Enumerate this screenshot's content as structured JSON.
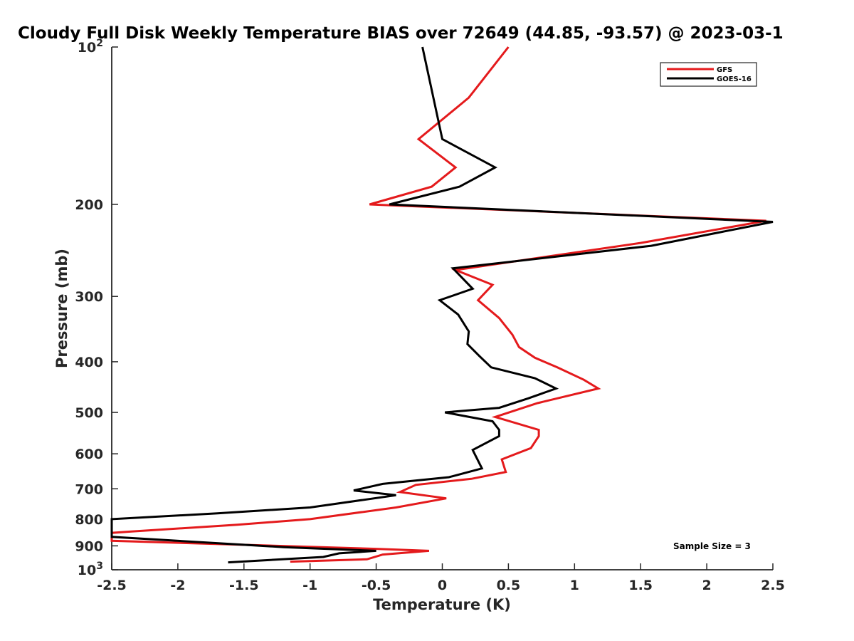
{
  "chart_data": {
    "type": "line",
    "title": "Cloudy Full Disk Weekly Temperature BIAS over 72649 (44.85, -93.57) @ 2023-03-1",
    "xlabel": "Temperature (K)",
    "ylabel": "Pressure (mb)",
    "xlim": [
      -2.5,
      2.5
    ],
    "ylim": [
      100,
      1000
    ],
    "y_scale": "log",
    "y_reversed": true,
    "x_ticks": [
      "-2.5",
      "-2",
      "-1.5",
      "-1",
      "-0.5",
      "0",
      "0.5",
      "1",
      "1.5",
      "2",
      "2.5"
    ],
    "x_tick_values": [
      -2.5,
      -2,
      -1.5,
      -1,
      -0.5,
      0,
      0.5,
      1,
      1.5,
      2,
      2.5
    ],
    "y_ticks": [
      {
        "value": 100,
        "label": "10",
        "sup": "2"
      },
      {
        "value": 200,
        "label": "200",
        "sup": ""
      },
      {
        "value": 300,
        "label": "300",
        "sup": ""
      },
      {
        "value": 400,
        "label": "400",
        "sup": ""
      },
      {
        "value": 500,
        "label": "500",
        "sup": ""
      },
      {
        "value": 600,
        "label": "600",
        "sup": ""
      },
      {
        "value": 700,
        "label": "700",
        "sup": ""
      },
      {
        "value": 800,
        "label": "800",
        "sup": ""
      },
      {
        "value": 900,
        "label": "900",
        "sup": ""
      },
      {
        "value": 1000,
        "label": "10",
        "sup": "3"
      }
    ],
    "grid": false,
    "legend_position": "top-right",
    "series": [
      {
        "name": "GFS",
        "color": "#e41a1c",
        "points": [
          [
            0.5,
            100
          ],
          [
            0.2,
            125
          ],
          [
            -0.18,
            150
          ],
          [
            0.1,
            170
          ],
          [
            -0.08,
            185
          ],
          [
            -0.55,
            200
          ],
          [
            2.45,
            215
          ],
          [
            1.5,
            237
          ],
          [
            0.1,
            267
          ],
          [
            0.38,
            285
          ],
          [
            0.27,
            305
          ],
          [
            0.43,
            330
          ],
          [
            0.53,
            355
          ],
          [
            0.58,
            375
          ],
          [
            0.7,
            393
          ],
          [
            0.87,
            410
          ],
          [
            1.07,
            433
          ],
          [
            1.18,
            450
          ],
          [
            0.72,
            480
          ],
          [
            0.4,
            510
          ],
          [
            0.73,
            540
          ],
          [
            0.73,
            555
          ],
          [
            0.67,
            585
          ],
          [
            0.45,
            615
          ],
          [
            0.48,
            650
          ],
          [
            0.22,
            670
          ],
          [
            -0.2,
            688
          ],
          [
            -0.32,
            710
          ],
          [
            0.03,
            730
          ],
          [
            -0.35,
            760
          ],
          [
            -1.0,
            800
          ],
          [
            -1.55,
            820
          ],
          [
            -2.35,
            845
          ],
          [
            -2.5,
            850
          ],
          [
            -2.5,
            880
          ],
          [
            -0.5,
            912
          ],
          [
            -0.1,
            920
          ],
          [
            -0.45,
            935
          ],
          [
            -0.57,
            955
          ],
          [
            -1.15,
            965
          ]
        ]
      },
      {
        "name": "GOES-16",
        "color": "#000000",
        "points": [
          [
            -0.15,
            100
          ],
          [
            0.0,
            150
          ],
          [
            0.4,
            170
          ],
          [
            0.13,
            185
          ],
          [
            -0.4,
            200
          ],
          [
            2.5,
            216
          ],
          [
            1.58,
            240
          ],
          [
            0.08,
            265
          ],
          [
            0.23,
            290
          ],
          [
            -0.02,
            305
          ],
          [
            0.12,
            325
          ],
          [
            0.2,
            350
          ],
          [
            0.19,
            370
          ],
          [
            0.28,
            390
          ],
          [
            0.37,
            410
          ],
          [
            0.7,
            430
          ],
          [
            0.86,
            450
          ],
          [
            0.65,
            470
          ],
          [
            0.43,
            490
          ],
          [
            0.02,
            500
          ],
          [
            0.38,
            520
          ],
          [
            0.43,
            540
          ],
          [
            0.43,
            555
          ],
          [
            0.23,
            590
          ],
          [
            0.3,
            640
          ],
          [
            0.05,
            665
          ],
          [
            -0.45,
            685
          ],
          [
            -0.67,
            705
          ],
          [
            -0.35,
            720
          ],
          [
            -1.0,
            760
          ],
          [
            -1.7,
            780
          ],
          [
            -2.5,
            800
          ],
          [
            -2.5,
            865
          ],
          [
            -1.2,
            905
          ],
          [
            -0.5,
            920
          ],
          [
            -0.78,
            930
          ],
          [
            -0.9,
            945
          ],
          [
            -1.62,
            968
          ]
        ]
      }
    ],
    "annotation": "Sample Size = 3"
  }
}
